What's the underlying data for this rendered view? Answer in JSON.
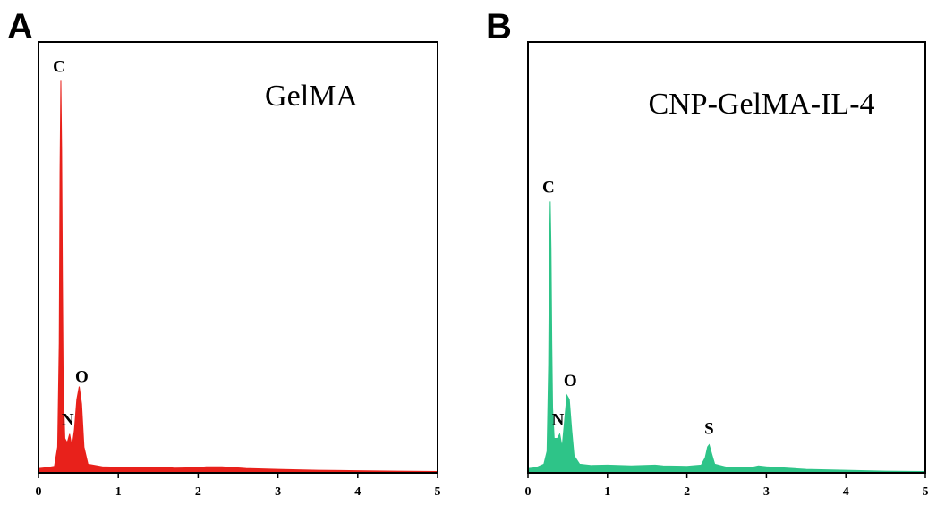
{
  "chart_data": [
    {
      "type": "area",
      "panel": "A",
      "title": "GelMA",
      "xlim": [
        0,
        5
      ],
      "x_ticks": [
        "0",
        "1",
        "2",
        "3",
        "4",
        "5"
      ],
      "color": "#e8211b",
      "peaks": [
        {
          "label": "C",
          "x": 0.28,
          "height": 0.91
        },
        {
          "label": "N",
          "x": 0.39,
          "height": 0.09
        },
        {
          "label": "O",
          "x": 0.52,
          "height": 0.19
        }
      ],
      "spectrum": [
        [
          0.0,
          0.01
        ],
        [
          0.1,
          0.012
        ],
        [
          0.2,
          0.015
        ],
        [
          0.24,
          0.06
        ],
        [
          0.26,
          0.3
        ],
        [
          0.27,
          0.7
        ],
        [
          0.28,
          0.91
        ],
        [
          0.29,
          0.75
        ],
        [
          0.3,
          0.45
        ],
        [
          0.31,
          0.2
        ],
        [
          0.33,
          0.08
        ],
        [
          0.36,
          0.07
        ],
        [
          0.39,
          0.09
        ],
        [
          0.42,
          0.06
        ],
        [
          0.45,
          0.1
        ],
        [
          0.48,
          0.17
        ],
        [
          0.51,
          0.2
        ],
        [
          0.54,
          0.16
        ],
        [
          0.57,
          0.06
        ],
        [
          0.62,
          0.02
        ],
        [
          0.8,
          0.014
        ],
        [
          1.0,
          0.013
        ],
        [
          1.3,
          0.012
        ],
        [
          1.6,
          0.013
        ],
        [
          1.7,
          0.011
        ],
        [
          2.0,
          0.012
        ],
        [
          2.1,
          0.014
        ],
        [
          2.3,
          0.014
        ],
        [
          2.6,
          0.01
        ],
        [
          3.0,
          0.008
        ],
        [
          3.5,
          0.006
        ],
        [
          4.0,
          0.005
        ],
        [
          4.5,
          0.004
        ],
        [
          5.0,
          0.003
        ]
      ]
    },
    {
      "type": "area",
      "panel": "B",
      "title": "CNP-GelMA-IL-4",
      "xlim": [
        0,
        5
      ],
      "x_ticks": [
        "0",
        "1",
        "2",
        "3",
        "4",
        "5"
      ],
      "color": "#2ec488",
      "peaks": [
        {
          "label": "C",
          "x": 0.28,
          "height": 0.63
        },
        {
          "label": "N",
          "x": 0.4,
          "height": 0.09
        },
        {
          "label": "O",
          "x": 0.51,
          "height": 0.18
        },
        {
          "label": "S",
          "x": 2.28,
          "height": 0.07
        }
      ],
      "spectrum": [
        [
          0.0,
          0.01
        ],
        [
          0.1,
          0.012
        ],
        [
          0.2,
          0.02
        ],
        [
          0.24,
          0.05
        ],
        [
          0.26,
          0.25
        ],
        [
          0.27,
          0.5
        ],
        [
          0.28,
          0.63
        ],
        [
          0.29,
          0.52
        ],
        [
          0.3,
          0.3
        ],
        [
          0.31,
          0.15
        ],
        [
          0.33,
          0.08
        ],
        [
          0.37,
          0.08
        ],
        [
          0.4,
          0.09
        ],
        [
          0.43,
          0.06
        ],
        [
          0.46,
          0.12
        ],
        [
          0.49,
          0.18
        ],
        [
          0.52,
          0.17
        ],
        [
          0.55,
          0.1
        ],
        [
          0.58,
          0.04
        ],
        [
          0.65,
          0.02
        ],
        [
          0.8,
          0.017
        ],
        [
          1.0,
          0.018
        ],
        [
          1.3,
          0.016
        ],
        [
          1.6,
          0.018
        ],
        [
          1.7,
          0.016
        ],
        [
          2.0,
          0.015
        ],
        [
          2.18,
          0.018
        ],
        [
          2.23,
          0.035
        ],
        [
          2.26,
          0.06
        ],
        [
          2.28,
          0.065
        ],
        [
          2.31,
          0.045
        ],
        [
          2.35,
          0.02
        ],
        [
          2.5,
          0.013
        ],
        [
          2.8,
          0.012
        ],
        [
          2.9,
          0.016
        ],
        [
          3.0,
          0.014
        ],
        [
          3.5,
          0.008
        ],
        [
          4.0,
          0.006
        ],
        [
          4.5,
          0.004
        ],
        [
          5.0,
          0.003
        ]
      ]
    }
  ]
}
